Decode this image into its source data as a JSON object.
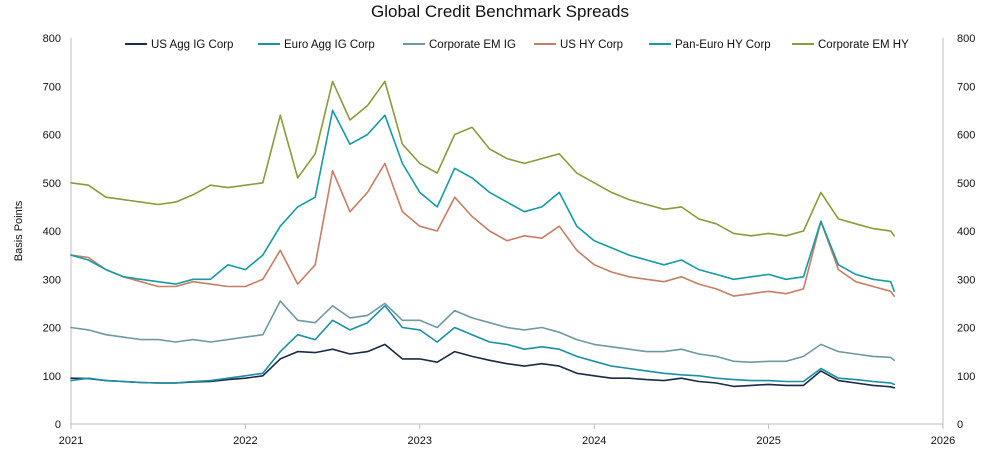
{
  "chart_data": {
    "type": "line",
    "title": "Global Credit Benchmark Spreads",
    "ylabel": "Basis Points",
    "ylim": [
      0,
      800
    ],
    "yticks": [
      "0",
      "100",
      "200",
      "300",
      "400",
      "500",
      "600",
      "700",
      "800"
    ],
    "xlim": [
      2021,
      2026
    ],
    "xticks": [
      "2021",
      "2022",
      "2023",
      "2024",
      "2025",
      "2026"
    ],
    "grid": false,
    "legend_position": "top",
    "x": [
      2021.0,
      2021.1,
      2021.2,
      2021.3,
      2021.4,
      2021.5,
      2021.6,
      2021.7,
      2021.8,
      2021.9,
      2022.0,
      2022.1,
      2022.2,
      2022.3,
      2022.4,
      2022.5,
      2022.6,
      2022.7,
      2022.8,
      2022.9,
      2023.0,
      2023.1,
      2023.2,
      2023.3,
      2023.4,
      2023.5,
      2023.6,
      2023.7,
      2023.8,
      2023.9,
      2024.0,
      2024.1,
      2024.2,
      2024.3,
      2024.4,
      2024.5,
      2024.6,
      2024.7,
      2024.8,
      2024.9,
      2025.0,
      2025.1,
      2025.2,
      2025.3,
      2025.4,
      2025.5,
      2025.6,
      2025.7,
      2025.72
    ],
    "series": [
      {
        "name": "US Agg IG Corp",
        "color": "#1c2b45",
        "values": [
          95,
          94,
          90,
          88,
          86,
          85,
          85,
          87,
          88,
          92,
          95,
          100,
          135,
          150,
          148,
          155,
          145,
          150,
          165,
          135,
          135,
          128,
          150,
          140,
          132,
          125,
          120,
          125,
          120,
          105,
          100,
          95,
          95,
          92,
          90,
          95,
          88,
          85,
          78,
          80,
          82,
          80,
          80,
          110,
          90,
          85,
          80,
          77,
          75
        ]
      },
      {
        "name": "Euro Agg IG Corp",
        "color": "#1a8fa5",
        "values": [
          90,
          95,
          90,
          88,
          86,
          85,
          85,
          88,
          90,
          95,
          100,
          105,
          150,
          185,
          175,
          215,
          195,
          210,
          245,
          200,
          195,
          170,
          200,
          185,
          170,
          165,
          155,
          160,
          155,
          140,
          130,
          120,
          115,
          110,
          105,
          102,
          100,
          95,
          92,
          90,
          90,
          88,
          88,
          115,
          95,
          92,
          88,
          85,
          82
        ]
      },
      {
        "name": "Corporate EM IG",
        "color": "#6f99a2",
        "values": [
          200,
          195,
          185,
          180,
          175,
          175,
          170,
          175,
          170,
          175,
          180,
          185,
          255,
          215,
          210,
          245,
          220,
          225,
          250,
          215,
          215,
          200,
          235,
          220,
          210,
          200,
          195,
          200,
          190,
          175,
          165,
          160,
          155,
          150,
          150,
          155,
          145,
          140,
          130,
          128,
          130,
          130,
          140,
          165,
          150,
          145,
          140,
          138,
          132
        ]
      },
      {
        "name": "US HY Corp",
        "color": "#c87d66",
        "values": [
          350,
          345,
          320,
          305,
          295,
          285,
          285,
          295,
          290,
          285,
          285,
          300,
          360,
          290,
          330,
          525,
          440,
          480,
          540,
          440,
          410,
          400,
          470,
          430,
          400,
          380,
          390,
          385,
          410,
          360,
          330,
          315,
          305,
          300,
          295,
          305,
          290,
          280,
          265,
          270,
          275,
          270,
          280,
          420,
          320,
          295,
          285,
          275,
          265
        ]
      },
      {
        "name": "Pan-Euro HY Corp",
        "color": "#149ba4",
        "values": [
          350,
          340,
          320,
          305,
          300,
          295,
          290,
          300,
          300,
          330,
          320,
          350,
          410,
          450,
          470,
          650,
          580,
          600,
          640,
          540,
          480,
          450,
          530,
          510,
          480,
          460,
          440,
          450,
          480,
          410,
          380,
          365,
          350,
          340,
          330,
          340,
          320,
          310,
          300,
          305,
          310,
          300,
          305,
          420,
          330,
          310,
          300,
          295,
          275
        ]
      },
      {
        "name": "Corporate EM HY",
        "color": "#8c9a3a",
        "values": [
          500,
          495,
          470,
          465,
          460,
          455,
          460,
          475,
          495,
          490,
          495,
          500,
          640,
          510,
          560,
          710,
          630,
          660,
          710,
          580,
          540,
          520,
          600,
          615,
          570,
          550,
          540,
          550,
          560,
          520,
          500,
          480,
          465,
          455,
          445,
          450,
          425,
          415,
          395,
          390,
          395,
          390,
          400,
          480,
          425,
          415,
          405,
          400,
          390
        ]
      }
    ]
  }
}
